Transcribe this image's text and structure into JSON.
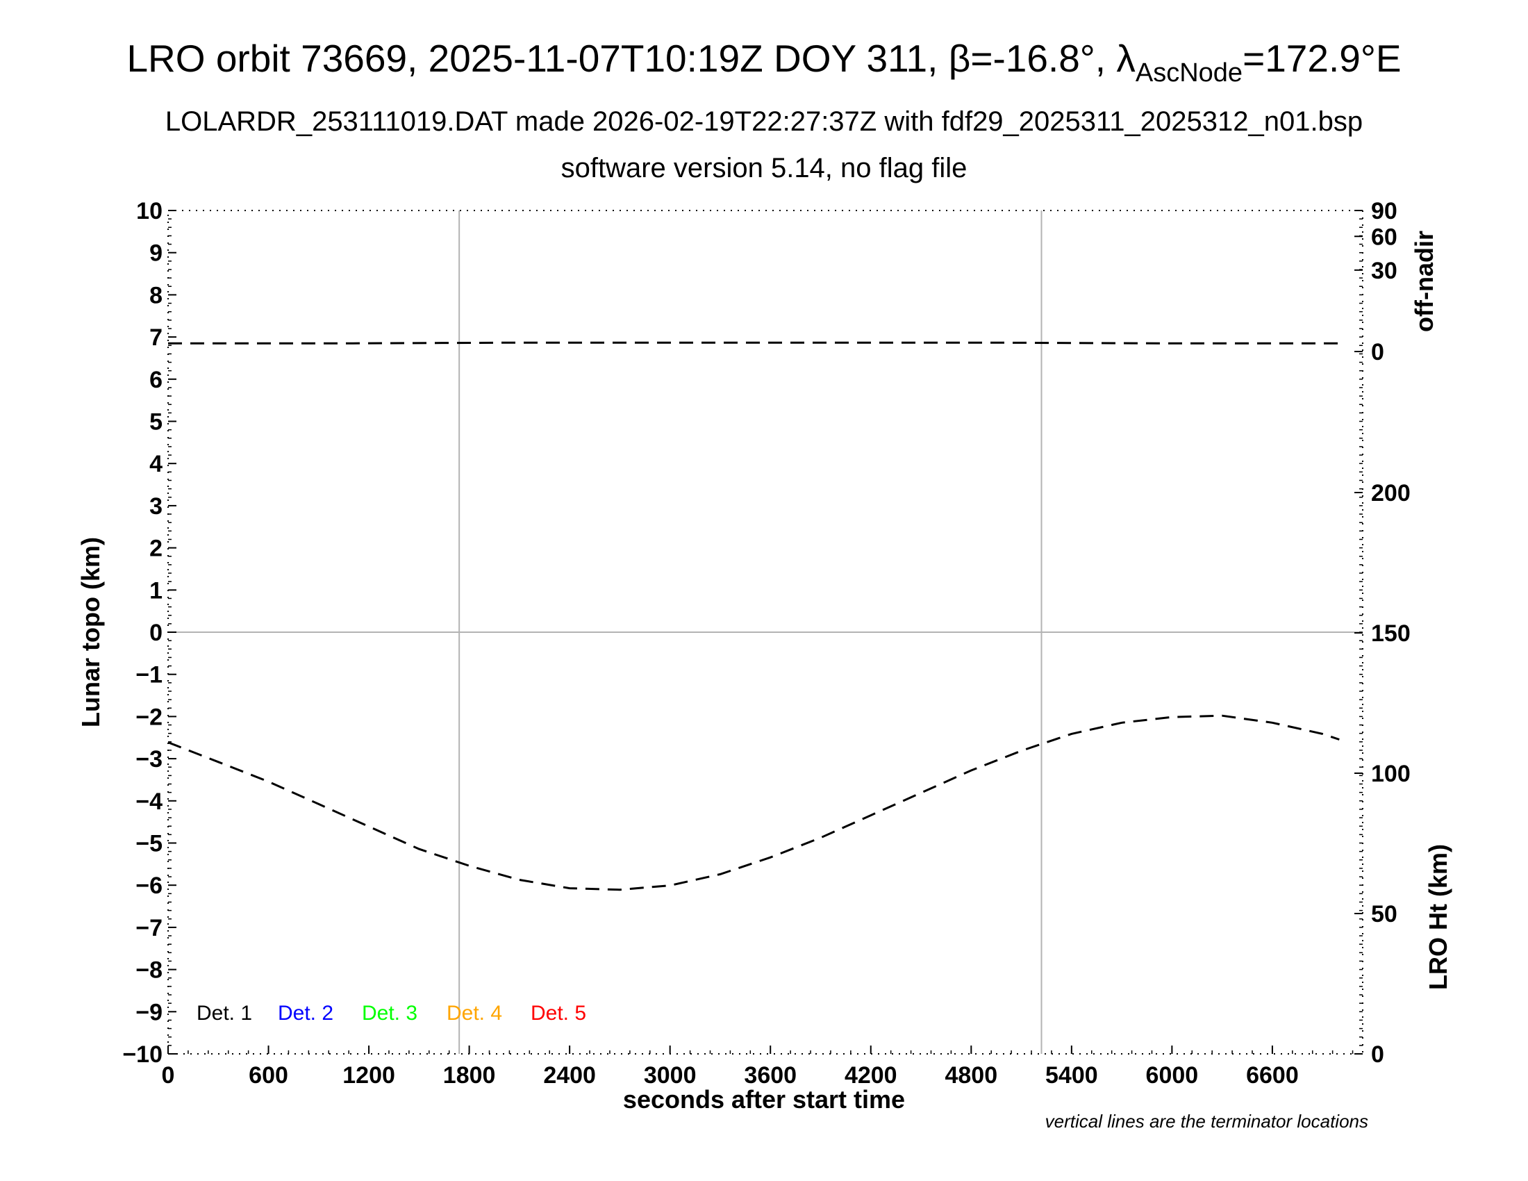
{
  "chart_data": {
    "type": "line",
    "title_main": "LRO orbit 73669, 2025-11-07T10:19Z DOY 311, β=-16.8°, λ",
    "title_sub": "AscNode",
    "title_end": "=172.9°E",
    "subtitle_1": "LOLARDR_253111019.DAT made 2026-02-19T22:27:37Z with fdf29_2025311_2025312_n01.bsp",
    "subtitle_2": "software version 5.14, no flag file",
    "xlabel": "seconds after start time",
    "ylabel_left": "Lunar topo (km)",
    "ylabel_right_top": "off-nadir",
    "ylabel_right_bottom": "LRO Ht (km)",
    "note": "vertical lines are the terminator locations",
    "xlim": [
      0,
      7140
    ],
    "ylim": [
      -10,
      10
    ],
    "x_ticks": [
      "0",
      "600",
      "1200",
      "1800",
      "2400",
      "3000",
      "3600",
      "4200",
      "4800",
      "5400",
      "6000",
      "6600"
    ],
    "x_tick_values": [
      0,
      600,
      1200,
      1800,
      2400,
      3000,
      3600,
      4200,
      4800,
      5400,
      6000,
      6600
    ],
    "y_ticks": [
      "10",
      "9",
      "8",
      "7",
      "6",
      "5",
      "4",
      "3",
      "2",
      "1",
      "0",
      "−1",
      "−2",
      "−3",
      "−4",
      "−5",
      "−6",
      "−7",
      "−8",
      "−9",
      "−10"
    ],
    "y_tick_values": [
      10,
      9,
      8,
      7,
      6,
      5,
      4,
      3,
      2,
      1,
      0,
      -1,
      -2,
      -3,
      -4,
      -5,
      -6,
      -7,
      -8,
      -9,
      -10
    ],
    "offnadir_ticks": [
      "90",
      "60",
      "30",
      "0"
    ],
    "offnadir_tick_values": [
      90,
      60,
      30,
      0
    ],
    "height_ticks": [
      "200",
      "150",
      "100",
      "50",
      "0"
    ],
    "height_tick_values": [
      200,
      150,
      100,
      50,
      0
    ],
    "terminator_x": [
      1740,
      5220
    ],
    "legend": [
      {
        "label": "Det. 1",
        "color": "#000000"
      },
      {
        "label": "Det. 2",
        "color": "#0000ff"
      },
      {
        "label": "Det. 3",
        "color": "#00ff00"
      },
      {
        "label": "Det. 4",
        "color": "#ffa500"
      },
      {
        "label": "Det. 5",
        "color": "#ff0000"
      }
    ],
    "series": [
      {
        "axis": "off-nadir",
        "style": "dashed",
        "x": [
          0,
          1000,
          2000,
          3000,
          4000,
          5000,
          6000,
          7000
        ],
        "values": [
          0.3,
          0.3,
          0.35,
          0.35,
          0.35,
          0.35,
          0.3,
          0.3
        ]
      },
      {
        "axis": "LRO Ht (km)",
        "style": "dashed",
        "x": [
          0,
          300,
          600,
          900,
          1200,
          1500,
          1800,
          2100,
          2400,
          2700,
          3000,
          3300,
          3600,
          3900,
          4200,
          4500,
          4800,
          5100,
          5400,
          5700,
          6000,
          6300,
          6600,
          6900,
          7000
        ],
        "values": [
          111,
          104,
          97,
          89,
          81,
          73,
          67,
          62,
          59,
          58.5,
          60,
          64,
          70,
          77,
          85,
          93,
          101,
          108,
          114,
          118,
          120,
          120.5,
          118,
          114,
          112
        ]
      }
    ]
  }
}
